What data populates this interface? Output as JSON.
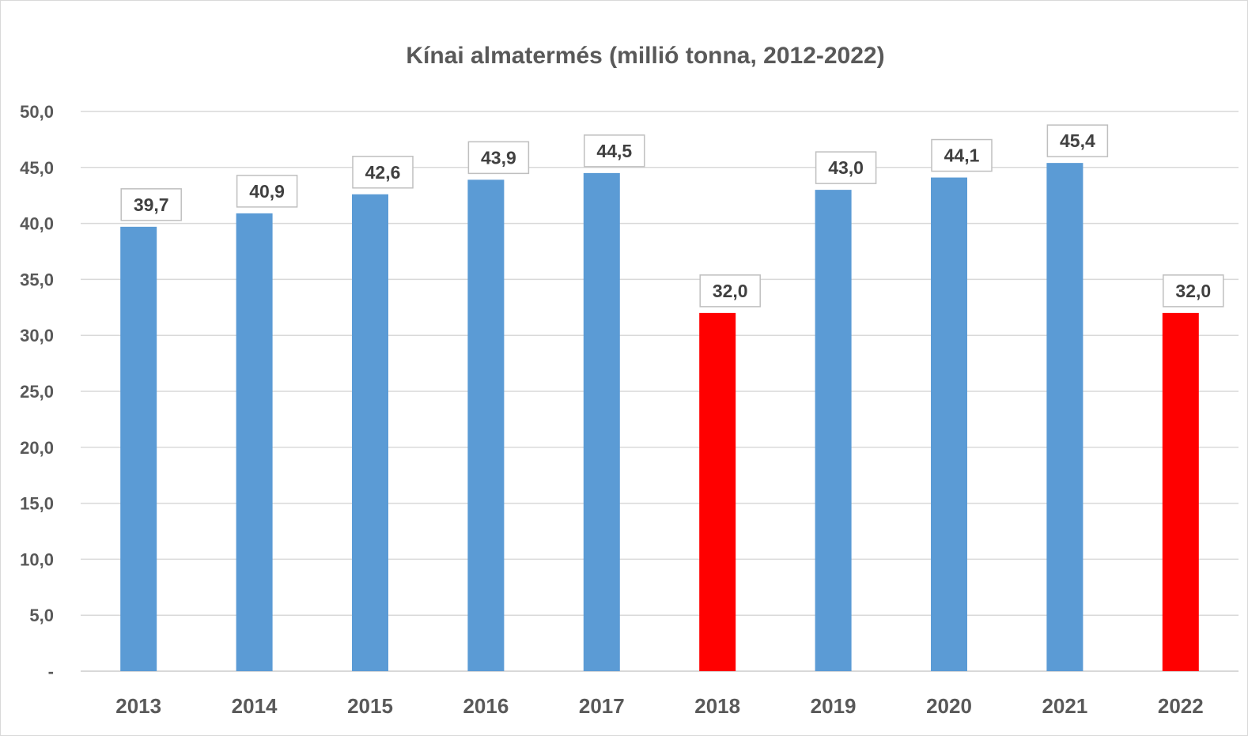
{
  "chart_data": {
    "type": "bar",
    "title": "Kínai almatermés (millió tonna, 2012-2022)",
    "xlabel": "",
    "ylabel": "",
    "categories": [
      "2013",
      "2014",
      "2015",
      "2016",
      "2017",
      "2018",
      "2019",
      "2020",
      "2021",
      "2022"
    ],
    "values": [
      39.7,
      40.9,
      42.6,
      43.9,
      44.5,
      32.0,
      43.0,
      44.1,
      45.4,
      32.0
    ],
    "data_labels": [
      "39,7",
      "40,9",
      "42,6",
      "43,9",
      "44,5",
      "32,0",
      "43,0",
      "44,1",
      "45,4",
      "32,0"
    ],
    "bar_colors": [
      "#5b9bd5",
      "#5b9bd5",
      "#5b9bd5",
      "#5b9bd5",
      "#5b9bd5",
      "#ff0000",
      "#5b9bd5",
      "#5b9bd5",
      "#5b9bd5",
      "#ff0000"
    ],
    "ylim": [
      0,
      50
    ],
    "yticks": [
      0,
      5,
      10,
      15,
      20,
      25,
      30,
      35,
      40,
      45,
      50
    ],
    "ytick_labels": [
      "-",
      "5,0",
      "10,0",
      "15,0",
      "20,0",
      "25,0",
      "30,0",
      "35,0",
      "40,0",
      "45,0",
      "50,0"
    ],
    "grid": true,
    "legend": "none"
  }
}
